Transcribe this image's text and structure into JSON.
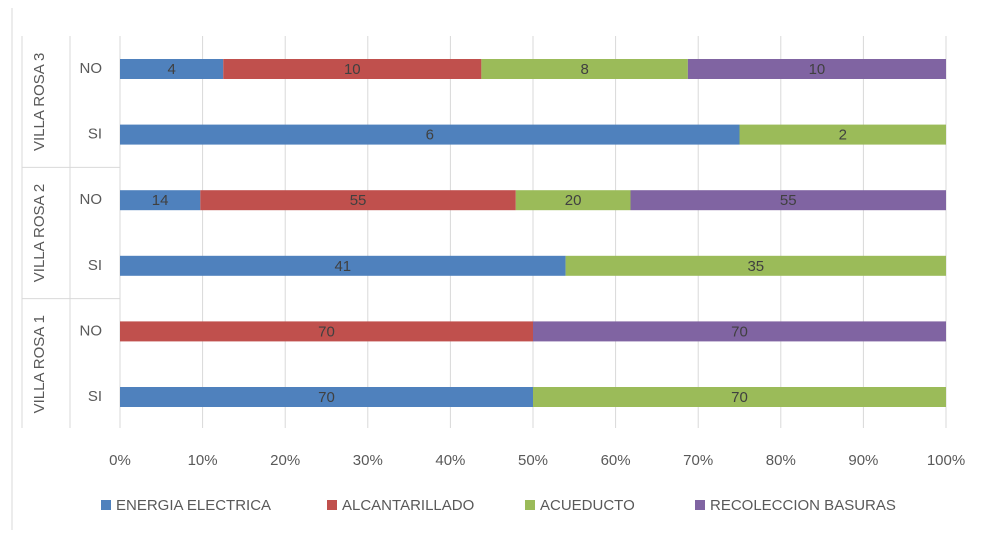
{
  "chart_data": {
    "type": "stacked_bar_100",
    "groups": [
      "VILLA ROSA 1",
      "VILLA ROSA 2",
      "VILLA ROSA 3"
    ],
    "categories": [
      "SI",
      "NO",
      "SI",
      "NO",
      "SI",
      "NO"
    ],
    "series": [
      {
        "name": "ENERGIA ELECTRICA",
        "color": "#4f81bd",
        "values": [
          70,
          null,
          41,
          14,
          6,
          4
        ]
      },
      {
        "name": "ALCANTARILLADO",
        "color": "#c0504d",
        "values": [
          null,
          70,
          null,
          55,
          null,
          10
        ]
      },
      {
        "name": "ACUEDUCTO",
        "color": "#9bbb59",
        "values": [
          70,
          null,
          35,
          20,
          2,
          8
        ]
      },
      {
        "name": "RECOLECCION BASURAS",
        "color": "#8064a2",
        "values": [
          null,
          70,
          null,
          55,
          null,
          10
        ]
      }
    ],
    "xlim": [
      0,
      100
    ],
    "xticks": [
      {
        "value": 0,
        "label": "0%"
      },
      {
        "value": 10,
        "label": "10%"
      },
      {
        "value": 20,
        "label": "20%"
      },
      {
        "value": 30,
        "label": "30%"
      },
      {
        "value": 40,
        "label": "40%"
      },
      {
        "value": 50,
        "label": "50%"
      },
      {
        "value": 60,
        "label": "60%"
      },
      {
        "value": 70,
        "label": "70%"
      },
      {
        "value": 80,
        "label": "80%"
      },
      {
        "value": 90,
        "label": "90%"
      },
      {
        "value": 100,
        "label": "100%"
      }
    ],
    "grid": true,
    "legend": "bottom"
  }
}
